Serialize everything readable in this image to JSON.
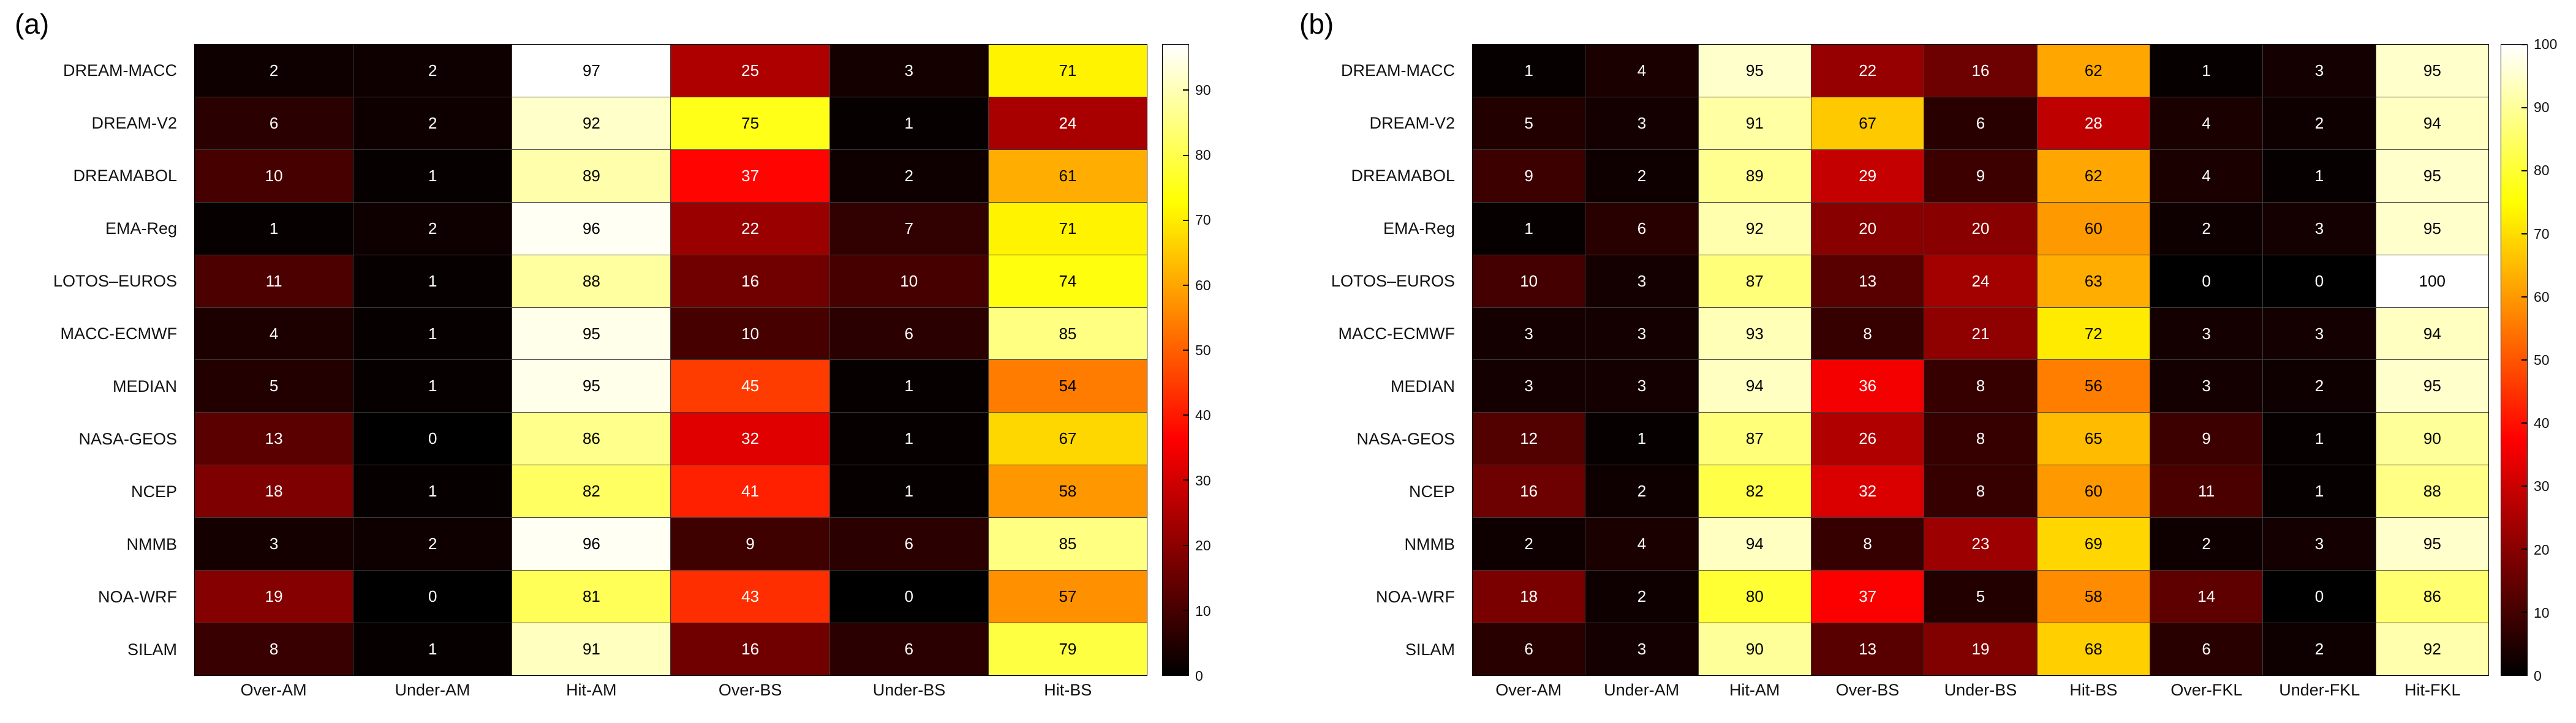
{
  "page": {
    "background_color": "#ffffff"
  },
  "chart_data": [
    {
      "type": "heatmap",
      "panel_label": "(a)",
      "colormap": "hot",
      "rows": [
        "DREAM-MACC",
        "DREAM-V2",
        "DREAMABOL",
        "EMA-Reg",
        "LOTOS–EUROS",
        "MACC-ECMWF",
        "MEDIAN",
        "NASA-GEOS",
        "NCEP",
        "NMMB",
        "NOA-WRF",
        "SILAM"
      ],
      "columns": [
        "Over-AM",
        "Under-AM",
        "Hit-AM",
        "Over-BS",
        "Under-BS",
        "Hit-BS"
      ],
      "values": [
        [
          2,
          2,
          97,
          25,
          3,
          71
        ],
        [
          6,
          2,
          92,
          75,
          1,
          24
        ],
        [
          10,
          1,
          89,
          37,
          2,
          61
        ],
        [
          1,
          2,
          96,
          22,
          7,
          71
        ],
        [
          11,
          1,
          88,
          16,
          10,
          74
        ],
        [
          4,
          1,
          95,
          10,
          6,
          85
        ],
        [
          5,
          1,
          95,
          45,
          1,
          54
        ],
        [
          13,
          0,
          86,
          32,
          1,
          67
        ],
        [
          18,
          1,
          82,
          41,
          1,
          58
        ],
        [
          3,
          2,
          96,
          9,
          6,
          85
        ],
        [
          19,
          0,
          81,
          43,
          0,
          57
        ],
        [
          8,
          1,
          91,
          16,
          6,
          79
        ]
      ],
      "colorbar": {
        "min": 0,
        "max": 97,
        "ticks": [
          0,
          10,
          20,
          30,
          40,
          50,
          60,
          70,
          80,
          90
        ],
        "position": "right"
      }
    },
    {
      "type": "heatmap",
      "panel_label": "(b)",
      "colormap": "hot",
      "rows": [
        "DREAM-MACC",
        "DREAM-V2",
        "DREAMABOL",
        "EMA-Reg",
        "LOTOS–EUROS",
        "MACC-ECMWF",
        "MEDIAN",
        "NASA-GEOS",
        "NCEP",
        "NMMB",
        "NOA-WRF",
        "SILAM"
      ],
      "columns": [
        "Over-AM",
        "Under-AM",
        "Hit-AM",
        "Over-BS",
        "Under-BS",
        "Hit-BS",
        "Over-FKL",
        "Under-FKL",
        "Hit-FKL"
      ],
      "values": [
        [
          1,
          4,
          95,
          22,
          16,
          62,
          1,
          3,
          95
        ],
        [
          5,
          3,
          91,
          67,
          6,
          28,
          4,
          2,
          94
        ],
        [
          9,
          2,
          89,
          29,
          9,
          62,
          4,
          1,
          95
        ],
        [
          1,
          6,
          92,
          20,
          20,
          60,
          2,
          3,
          95
        ],
        [
          10,
          3,
          87,
          13,
          24,
          63,
          0,
          0,
          100
        ],
        [
          3,
          3,
          93,
          8,
          21,
          72,
          3,
          3,
          94
        ],
        [
          3,
          3,
          94,
          36,
          8,
          56,
          3,
          2,
          95
        ],
        [
          12,
          1,
          87,
          26,
          8,
          65,
          9,
          1,
          90
        ],
        [
          16,
          2,
          82,
          32,
          8,
          60,
          11,
          1,
          88
        ],
        [
          2,
          4,
          94,
          8,
          23,
          69,
          2,
          3,
          95
        ],
        [
          18,
          2,
          80,
          37,
          5,
          58,
          14,
          0,
          86
        ],
        [
          6,
          3,
          90,
          13,
          19,
          68,
          6,
          2,
          92
        ]
      ],
      "colorbar": {
        "min": 0,
        "max": 100,
        "ticks": [
          0,
          10,
          20,
          30,
          40,
          50,
          60,
          70,
          80,
          90,
          100
        ],
        "position": "right"
      }
    }
  ]
}
